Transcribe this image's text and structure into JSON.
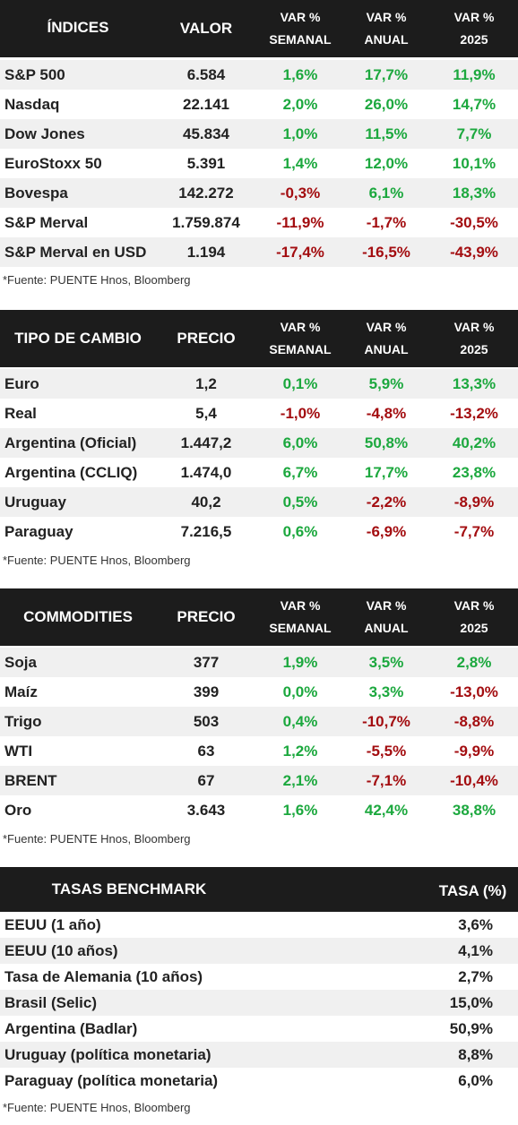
{
  "tables": [
    {
      "headers": [
        "ÍNDICES",
        "VALOR",
        "VAR %",
        "SEMANAL",
        "VAR %",
        "ANUAL",
        "VAR %",
        "2025"
      ],
      "rows": [
        {
          "name": "S&P 500",
          "value": "6.584",
          "weekly": "1,6%",
          "annual": "17,7%",
          "ytd": "11,9%"
        },
        {
          "name": "Nasdaq",
          "value": "22.141",
          "weekly": "2,0%",
          "annual": "26,0%",
          "ytd": "14,7%"
        },
        {
          "name": "Dow Jones",
          "value": "45.834",
          "weekly": "1,0%",
          "annual": "11,5%",
          "ytd": "7,7%"
        },
        {
          "name": "EuroStoxx 50",
          "value": "5.391",
          "weekly": "1,4%",
          "annual": "12,0%",
          "ytd": "10,1%"
        },
        {
          "name": "Bovespa",
          "value": "142.272",
          "weekly": "-0,3%",
          "annual": "6,1%",
          "ytd": "18,3%"
        },
        {
          "name": "S&P Merval",
          "value": "1.759.874",
          "weekly": "-11,9%",
          "annual": "-1,7%",
          "ytd": "-30,5%"
        },
        {
          "name": "S&P Merval en USD",
          "value": "1.194",
          "weekly": "-17,4%",
          "annual": "-16,5%",
          "ytd": "-43,9%"
        }
      ],
      "source": "*Fuente: PUENTE Hnos, Bloomberg"
    },
    {
      "headers": [
        "TIPO DE CAMBIO",
        "PRECIO",
        "VAR %",
        "SEMANAL",
        "VAR %",
        "ANUAL",
        "VAR %",
        "2025"
      ],
      "rows": [
        {
          "name": "Euro",
          "value": "1,2",
          "weekly": "0,1%",
          "annual": "5,9%",
          "ytd": "13,3%"
        },
        {
          "name": "Real",
          "value": "5,4",
          "weekly": "-1,0%",
          "annual": "-4,8%",
          "ytd": "-13,2%"
        },
        {
          "name": "Argentina (Oficial)",
          "value": "1.447,2",
          "weekly": "6,0%",
          "annual": "50,8%",
          "ytd": "40,2%"
        },
        {
          "name": "Argentina (CCLIQ)",
          "value": "1.474,0",
          "weekly": "6,7%",
          "annual": "17,7%",
          "ytd": "23,8%"
        },
        {
          "name": "Uruguay",
          "value": "40,2",
          "weekly": "0,5%",
          "annual": "-2,2%",
          "ytd": "-8,9%"
        },
        {
          "name": "Paraguay",
          "value": "7.216,5",
          "weekly": "0,6%",
          "annual": "-6,9%",
          "ytd": "-7,7%"
        }
      ],
      "source": "*Fuente: PUENTE Hnos, Bloomberg"
    },
    {
      "headers": [
        "COMMODITIES",
        "PRECIO",
        "VAR %",
        "SEMANAL",
        "VAR %",
        "ANUAL",
        "VAR %",
        "2025"
      ],
      "rows": [
        {
          "name": "Soja",
          "value": "377",
          "weekly": "1,9%",
          "annual": "3,5%",
          "ytd": "2,8%"
        },
        {
          "name": "Maíz",
          "value": "399",
          "weekly": "0,0%",
          "annual": "3,3%",
          "ytd": "-13,0%"
        },
        {
          "name": "Trigo",
          "value": "503",
          "weekly": "0,4%",
          "annual": "-10,7%",
          "ytd": "-8,8%"
        },
        {
          "name": "WTI",
          "value": "63",
          "weekly": "1,2%",
          "annual": "-5,5%",
          "ytd": "-9,9%"
        },
        {
          "name": "BRENT",
          "value": "67",
          "weekly": "2,1%",
          "annual": "-7,1%",
          "ytd": "-10,4%"
        },
        {
          "name": "Oro",
          "value": "3.643",
          "weekly": "1,6%",
          "annual": "42,4%",
          "ytd": "38,8%"
        }
      ],
      "source": "*Fuente: PUENTE Hnos, Bloomberg"
    }
  ],
  "rates": {
    "headers": [
      "TASAS BENCHMARK",
      "TASA (%)"
    ],
    "rows": [
      {
        "name": "EEUU (1 año)",
        "rate": "3,6%"
      },
      {
        "name": "EEUU (10 años)",
        "rate": "4,1%"
      },
      {
        "name": "Tasa de Alemania (10 años)",
        "rate": "2,7%"
      },
      {
        "name": "Brasil (Selic)",
        "rate": "15,0%"
      },
      {
        "name": "Argentina (Badlar)",
        "rate": "50,9%"
      },
      {
        "name": "Uruguay (política monetaria)",
        "rate": "8,8%"
      },
      {
        "name": "Paraguay (política monetaria)",
        "rate": "6,0%"
      }
    ],
    "source": "*Fuente: PUENTE Hnos, Bloomberg"
  },
  "colors": {
    "header_bg": "#1c1c1c",
    "positive": "#1ca83e",
    "negative": "#a30d10",
    "row_shade": "#f0f0f0"
  }
}
